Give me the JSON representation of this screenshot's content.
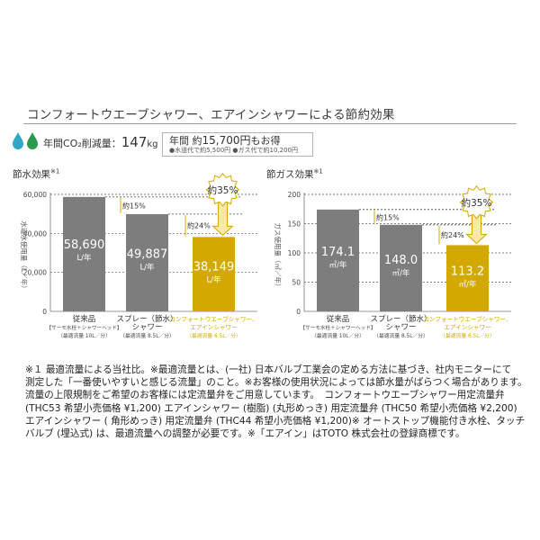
{
  "page_title": "コンフォートウエーブシャワー、エアインシャワーによる節約効果",
  "co2": {
    "label": "年間CO₂削減量：",
    "value": "147",
    "unit": "kg"
  },
  "savings": {
    "prefix": "年間 約",
    "amount": "15,700円",
    "suffix": "もお得",
    "water_note": "●水道代で約5,500円",
    "gas_note": "●ガス代で約10,200円"
  },
  "colors": {
    "conventional": "#7d7d7d",
    "spray": "#7d7d7d",
    "comfort": "#d3a800",
    "drop": "#2fa7c6",
    "drop_green": "#2a9a4e",
    "arrow_fill": "#fae8a4",
    "arrow_stroke": "#d3a800"
  },
  "chart_data": [
    {
      "type": "bar",
      "title": "節水効果",
      "title_mark": "※1",
      "ylabel": "水道水使用量（L／年）",
      "ylim": [
        0,
        60000
      ],
      "yticks": [
        "0",
        "20,000",
        "40,000",
        "60,000"
      ],
      "categories": [
        {
          "name": "従来品",
          "sub": "【サーモ水栓＋シャワーヘッド】",
          "flow": "（最適流量 10L／分）"
        },
        {
          "name": "スプレー（節水）",
          "name2": "シャワー",
          "flow": "（最適流量 8.5L／分）"
        },
        {
          "name": "コンフォートウエーブシャワー、",
          "name2": "エアインシャワー",
          "flow": "（最適流量 6.5L／分）"
        }
      ],
      "values": [
        58690,
        49887,
        38149
      ],
      "value_labels": [
        "58,690",
        "49,887",
        "38,149"
      ],
      "unit_label": "L/年",
      "annotations": {
        "pct_top": "約15%",
        "pct_mid": "約24%",
        "pct_big": "約35%"
      }
    },
    {
      "type": "bar",
      "title": "節ガス効果",
      "title_mark": "※1",
      "ylabel": "ガス使用量（㎥／年）",
      "ylim": [
        0,
        200
      ],
      "yticks": [
        "0",
        "50",
        "100",
        "150",
        "200"
      ],
      "categories": [
        {
          "name": "従来品",
          "sub": "【サーモ水栓＋シャワーヘッド】",
          "flow": "（最適流量 10L／分）"
        },
        {
          "name": "スプレー（節水）",
          "name2": "シャワー",
          "flow": "（最適流量 8.5L／分）"
        },
        {
          "name": "コンフォートウエーブシャワー、",
          "name2": "エアインシャワー",
          "flow": "（最適流量 6.5L／分）"
        }
      ],
      "values": [
        174.1,
        148.0,
        113.2
      ],
      "value_labels": [
        "174.1",
        "148.0",
        "113.2"
      ],
      "unit_label": "㎥/年",
      "annotations": {
        "pct_top": "約15%",
        "pct_mid": "約24%",
        "pct_big": "約35%"
      }
    }
  ],
  "notes": [
    "※１ 最適流量による当社比。※最適流量とは、(一社) 日本バルブ工業会の定める方法に基づき、社内モニターにて",
    "測定した「一番使いやすいと感じる流量」のこと。※お客様の使用状況によっては節水量がばらつく場合があります。",
    "流量の上限規制をご希望のお客様には定流量弁をご用意しています。　コンフォートウエーブシャワー用定流量弁",
    "(THC53 希望小売価格 ¥1,200) エアインシャワー (樹脂) (丸形めっき) 用定流量弁 (THC50 希望小売価格 ¥2,200)",
    "エアインシャワー ( 角形めっき) 用定流量弁 (THC44 希望小売価格 ¥1,200)※ オートストップ機能付き水栓、タッチ",
    "バルブ (埋込式) は、最適流量への調整が必要です。※「エアイン」はTOTO 株式会社の登録商標です。"
  ]
}
